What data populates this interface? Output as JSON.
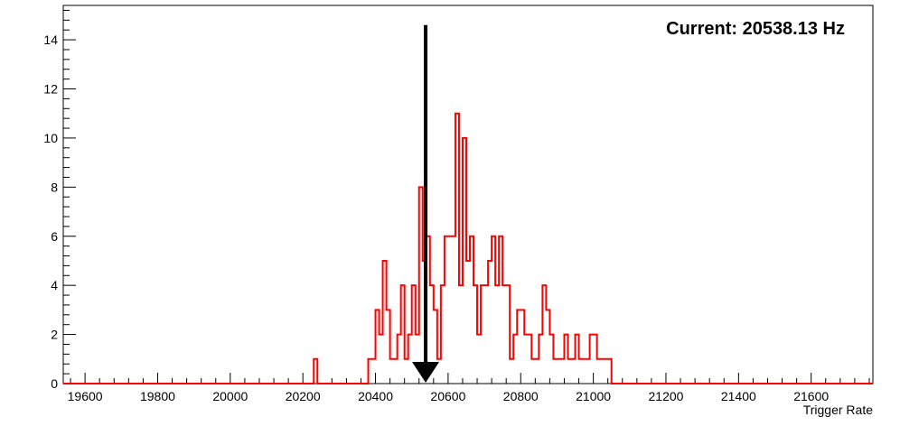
{
  "chart_data": {
    "type": "histogram",
    "title": "",
    "xlabel": "Trigger Rate",
    "ylabel": "",
    "xlim": [
      19540,
      21770
    ],
    "ylim": [
      0,
      15.4
    ],
    "xticks": [
      19600,
      19800,
      20000,
      20200,
      20400,
      20600,
      20800,
      21000,
      21200,
      21400,
      21600
    ],
    "yticks": [
      0,
      2,
      4,
      6,
      8,
      10,
      12,
      14
    ],
    "grid": false,
    "bin_width": 10,
    "series": [
      {
        "color": "#ff0000",
        "bins": [
          [
            20235,
            1
          ],
          [
            20385,
            1
          ],
          [
            20395,
            1
          ],
          [
            20405,
            3
          ],
          [
            20415,
            2
          ],
          [
            20425,
            5
          ],
          [
            20435,
            3
          ],
          [
            20445,
            1
          ],
          [
            20455,
            1
          ],
          [
            20465,
            2
          ],
          [
            20475,
            4
          ],
          [
            20485,
            1
          ],
          [
            20495,
            2
          ],
          [
            20505,
            4
          ],
          [
            20515,
            2
          ],
          [
            20525,
            8
          ],
          [
            20535,
            5
          ],
          [
            20545,
            6
          ],
          [
            20555,
            4
          ],
          [
            20565,
            3
          ],
          [
            20575,
            1
          ],
          [
            20585,
            4
          ],
          [
            20595,
            6
          ],
          [
            20605,
            6
          ],
          [
            20615,
            6
          ],
          [
            20625,
            11
          ],
          [
            20635,
            4
          ],
          [
            20645,
            10
          ],
          [
            20655,
            5
          ],
          [
            20665,
            6
          ],
          [
            20675,
            4
          ],
          [
            20685,
            2
          ],
          [
            20695,
            4
          ],
          [
            20705,
            4
          ],
          [
            20715,
            5
          ],
          [
            20725,
            6
          ],
          [
            20735,
            4
          ],
          [
            20745,
            6
          ],
          [
            20755,
            4
          ],
          [
            20765,
            4
          ],
          [
            20775,
            1
          ],
          [
            20785,
            2
          ],
          [
            20795,
            3
          ],
          [
            20805,
            3
          ],
          [
            20815,
            2
          ],
          [
            20825,
            2
          ],
          [
            20835,
            1
          ],
          [
            20845,
            1
          ],
          [
            20855,
            2
          ],
          [
            20865,
            4
          ],
          [
            20875,
            3
          ],
          [
            20885,
            2
          ],
          [
            20895,
            1
          ],
          [
            20905,
            1
          ],
          [
            20915,
            1
          ],
          [
            20925,
            2
          ],
          [
            20935,
            1
          ],
          [
            20945,
            1
          ],
          [
            20955,
            2
          ],
          [
            20965,
            1
          ],
          [
            20975,
            1
          ],
          [
            20985,
            1
          ],
          [
            20995,
            2
          ],
          [
            21005,
            2
          ],
          [
            21015,
            1
          ],
          [
            21025,
            1
          ],
          [
            21035,
            1
          ],
          [
            21045,
            1
          ]
        ]
      }
    ],
    "marker": {
      "x": 20538.13,
      "y_top": 14.6,
      "color": "#000000"
    },
    "annotation": {
      "text": "Current: 20538.13 Hz",
      "position": "top-right"
    }
  }
}
